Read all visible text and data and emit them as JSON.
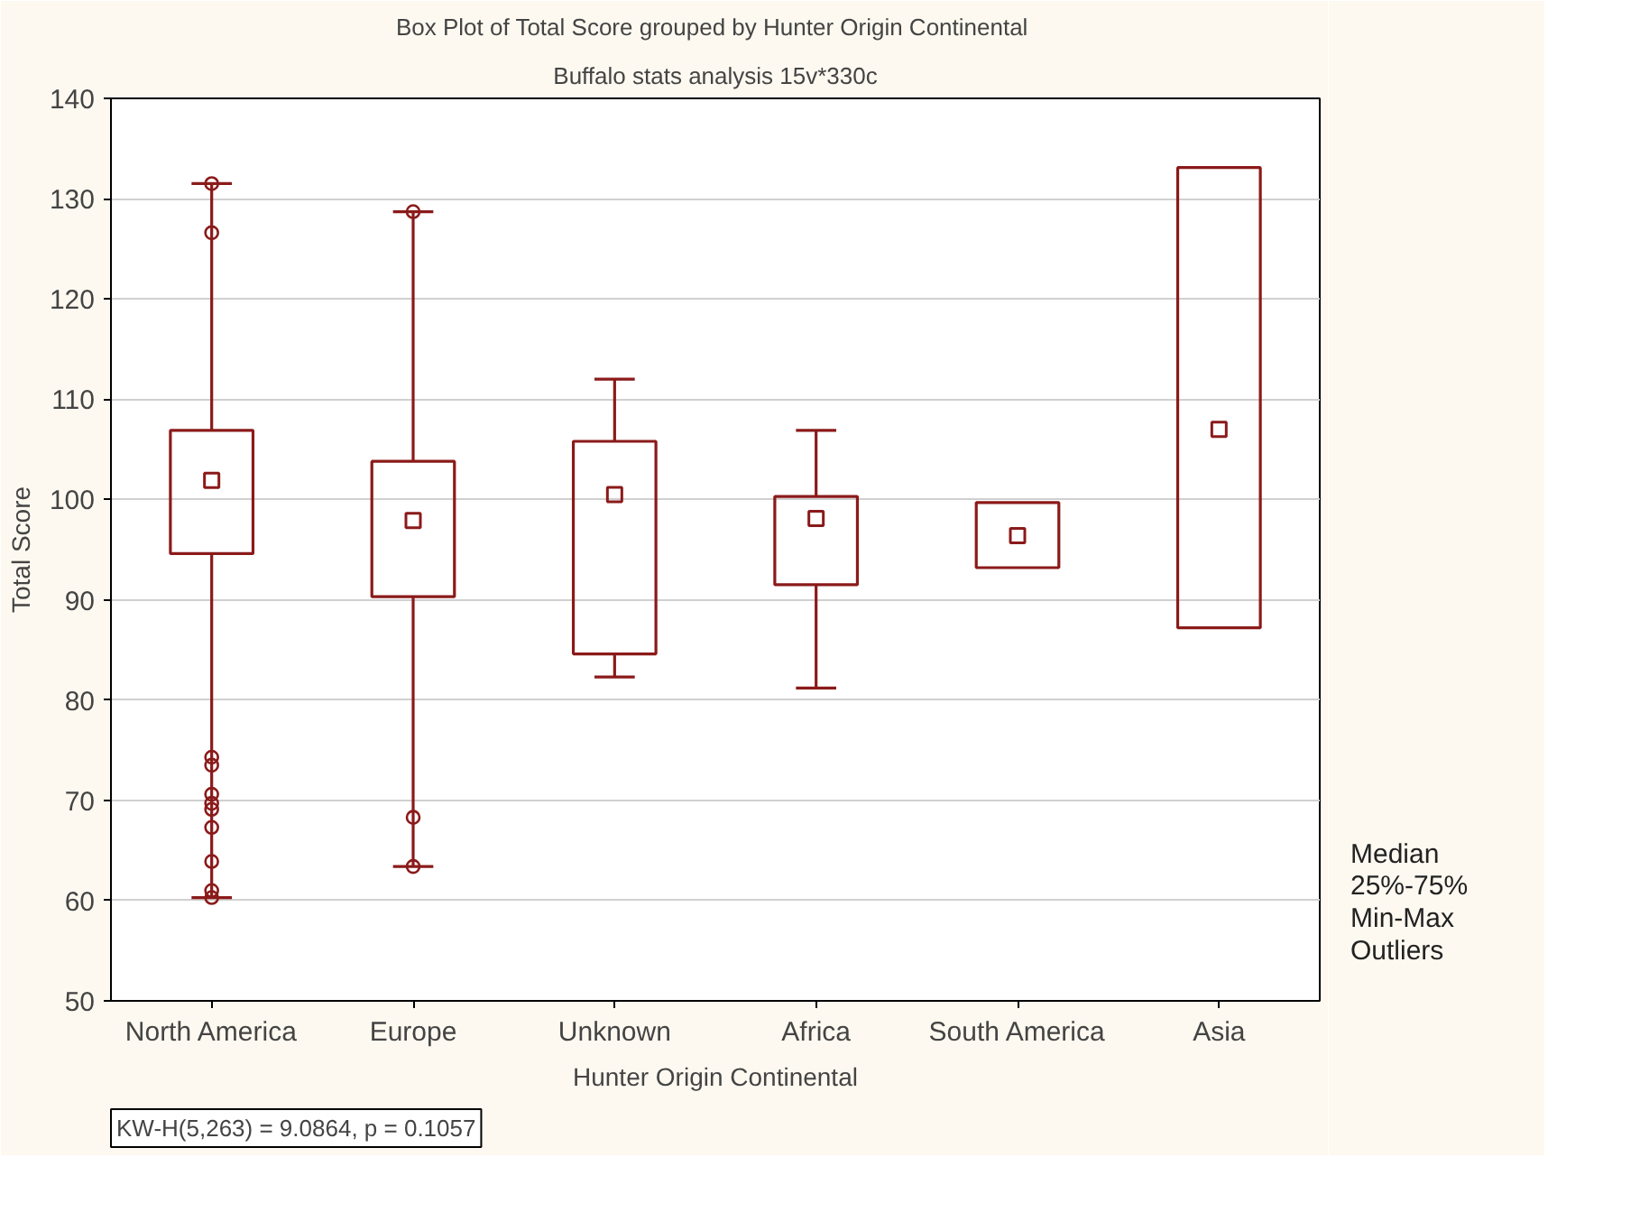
{
  "chart_data": {
    "type": "box",
    "title": "Box Plot of Total Score grouped by  Hunter Origin Continental",
    "subtitle": "Buffalo stats analysis 15v*330c",
    "xlabel": "Hunter Origin Continental",
    "ylabel": "Total Score",
    "categories": [
      "North America",
      "Europe",
      "Unknown",
      "Africa",
      "South America",
      "Asia"
    ],
    "series": [
      {
        "name": null,
        "color": "#8b1a1a",
        "boxes": [
          {
            "low": 60.3,
            "q1": 94.6,
            "median": 101.9,
            "q3": 106.9,
            "high": 131.5,
            "outliers": [
              131.5,
              126.6,
              74.3,
              73.5,
              70.6,
              69.7,
              69.1,
              67.3,
              63.9,
              61.0,
              60.3
            ]
          },
          {
            "low": 63.4,
            "q1": 90.3,
            "median": 97.9,
            "q3": 103.8,
            "high": 128.7,
            "outliers": [
              128.7,
              68.3,
              63.4
            ]
          },
          {
            "low": 82.3,
            "q1": 84.6,
            "median": 100.5,
            "q3": 105.8,
            "high": 112.0
          },
          {
            "low": 81.2,
            "q1": 91.5,
            "median": 98.1,
            "q3": 100.3,
            "high": 106.9
          },
          {
            "low": 93.2,
            "q1": 93.2,
            "median": 96.4,
            "q3": 99.7,
            "high": 99.7
          },
          {
            "low": 87.2,
            "q1": 87.2,
            "median": 107.0,
            "q3": 133.1,
            "high": 133.1
          }
        ]
      }
    ],
    "ylim": [
      50,
      140
    ],
    "yticks": [
      50,
      60,
      70,
      80,
      90,
      100,
      110,
      120,
      130,
      140
    ],
    "grid": "y",
    "marker": "square",
    "annotations": [
      "KW-H(5,263) = 9.0864, p = 0.1057",
      "Median",
      "25%-75%",
      "Min-Max",
      "Outliers"
    ]
  }
}
